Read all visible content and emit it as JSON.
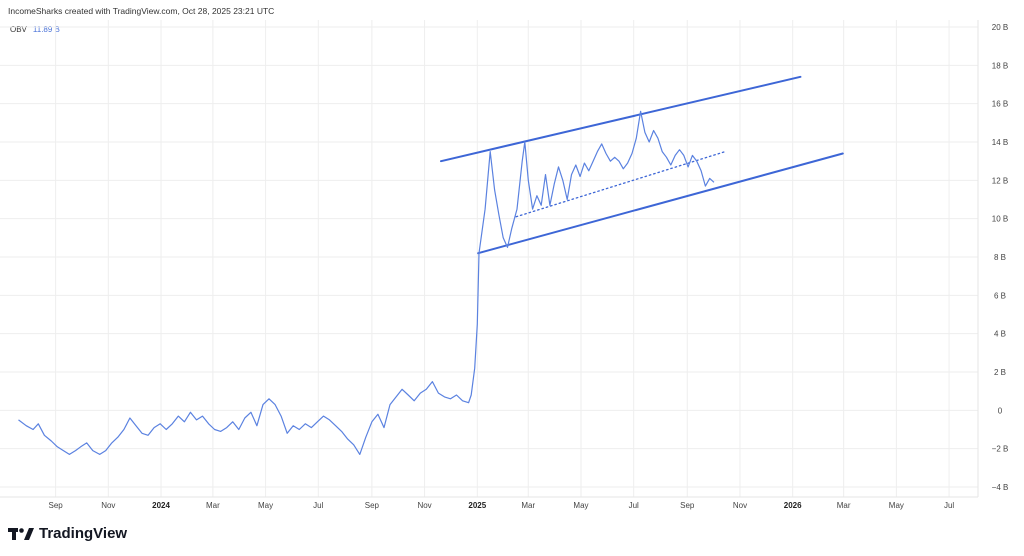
{
  "header": {
    "caption": "IncomeSharks created with TradingView.com, Oct 28, 2025 23:21 UTC"
  },
  "legend": {
    "indicator": "OBV",
    "value": "11.89 B"
  },
  "brand": {
    "name": "TradingView",
    "logo_icon": "tradingview-logo-icon"
  },
  "colors": {
    "series": "#5b82e0",
    "trendline": "#3d66d6",
    "grid": "#eeeeee",
    "axis_text": "#444444"
  },
  "chart_data": {
    "type": "line",
    "title": "",
    "xlabel": "",
    "ylabel": "",
    "ylim": [
      -4,
      20
    ],
    "x_range": [
      "2023-07-16",
      "2026-07-31"
    ],
    "y_ticks": [
      {
        "value": 20,
        "label": "20 B"
      },
      {
        "value": 18,
        "label": "18 B"
      },
      {
        "value": 16,
        "label": "16 B"
      },
      {
        "value": 14,
        "label": "14 B"
      },
      {
        "value": 12,
        "label": "12 B"
      },
      {
        "value": 10,
        "label": "10 B"
      },
      {
        "value": 8,
        "label": "8 B"
      },
      {
        "value": 6,
        "label": "6 B"
      },
      {
        "value": 4,
        "label": "4 B"
      },
      {
        "value": 2,
        "label": "2 B"
      },
      {
        "value": 0,
        "label": "0"
      },
      {
        "value": -2,
        "label": "−2 B"
      },
      {
        "value": -4,
        "label": "−4 B"
      }
    ],
    "x_ticks": [
      {
        "date": "2023-09-01",
        "label": "Sep",
        "bold": false
      },
      {
        "date": "2023-11-01",
        "label": "Nov",
        "bold": false
      },
      {
        "date": "2024-01-01",
        "label": "2024",
        "bold": true
      },
      {
        "date": "2024-03-01",
        "label": "Mar",
        "bold": false
      },
      {
        "date": "2024-05-01",
        "label": "May",
        "bold": false
      },
      {
        "date": "2024-07-01",
        "label": "Jul",
        "bold": false
      },
      {
        "date": "2024-09-01",
        "label": "Sep",
        "bold": false
      },
      {
        "date": "2024-11-01",
        "label": "Nov",
        "bold": false
      },
      {
        "date": "2025-01-01",
        "label": "2025",
        "bold": true
      },
      {
        "date": "2025-03-01",
        "label": "Mar",
        "bold": false
      },
      {
        "date": "2025-05-01",
        "label": "May",
        "bold": false
      },
      {
        "date": "2025-07-01",
        "label": "Jul",
        "bold": false
      },
      {
        "date": "2025-09-01",
        "label": "Sep",
        "bold": false
      },
      {
        "date": "2025-11-01",
        "label": "Nov",
        "bold": false
      },
      {
        "date": "2026-01-01",
        "label": "2026",
        "bold": true
      },
      {
        "date": "2026-03-01",
        "label": "Mar",
        "bold": false
      },
      {
        "date": "2026-05-01",
        "label": "May",
        "bold": false
      },
      {
        "date": "2026-07-01",
        "label": "Jul",
        "bold": false
      }
    ],
    "grid": true,
    "series": [
      {
        "points": [
          [
            "2023-07-20",
            -0.5
          ],
          [
            "2023-07-29",
            -0.8
          ],
          [
            "2023-08-06",
            -1.0
          ],
          [
            "2023-08-12",
            -0.7
          ],
          [
            "2023-08-19",
            -1.3
          ],
          [
            "2023-08-27",
            -1.6
          ],
          [
            "2023-09-03",
            -1.9
          ],
          [
            "2023-09-10",
            -2.1
          ],
          [
            "2023-09-17",
            -2.3
          ],
          [
            "2023-09-24",
            -2.1
          ],
          [
            "2023-09-30",
            -1.9
          ],
          [
            "2023-10-07",
            -1.7
          ],
          [
            "2023-10-14",
            -2.1
          ],
          [
            "2023-10-22",
            -2.3
          ],
          [
            "2023-10-29",
            -2.1
          ],
          [
            "2023-11-05",
            -1.7
          ],
          [
            "2023-11-12",
            -1.4
          ],
          [
            "2023-11-19",
            -1.0
          ],
          [
            "2023-11-26",
            -0.4
          ],
          [
            "2023-12-03",
            -0.8
          ],
          [
            "2023-12-10",
            -1.2
          ],
          [
            "2023-12-17",
            -1.3
          ],
          [
            "2023-12-24",
            -0.9
          ],
          [
            "2023-12-31",
            -0.7
          ],
          [
            "2024-01-07",
            -1.0
          ],
          [
            "2024-01-14",
            -0.7
          ],
          [
            "2024-01-21",
            -0.3
          ],
          [
            "2024-01-28",
            -0.6
          ],
          [
            "2024-02-04",
            -0.1
          ],
          [
            "2024-02-11",
            -0.5
          ],
          [
            "2024-02-18",
            -0.3
          ],
          [
            "2024-02-25",
            -0.7
          ],
          [
            "2024-03-03",
            -1.0
          ],
          [
            "2024-03-10",
            -1.1
          ],
          [
            "2024-03-17",
            -0.9
          ],
          [
            "2024-03-24",
            -0.6
          ],
          [
            "2024-03-31",
            -1.0
          ],
          [
            "2024-04-07",
            -0.4
          ],
          [
            "2024-04-14",
            -0.1
          ],
          [
            "2024-04-21",
            -0.8
          ],
          [
            "2024-04-28",
            0.3
          ],
          [
            "2024-05-05",
            0.6
          ],
          [
            "2024-05-12",
            0.3
          ],
          [
            "2024-05-19",
            -0.3
          ],
          [
            "2024-05-26",
            -1.2
          ],
          [
            "2024-06-02",
            -0.8
          ],
          [
            "2024-06-09",
            -1.0
          ],
          [
            "2024-06-16",
            -0.7
          ],
          [
            "2024-06-23",
            -0.9
          ],
          [
            "2024-06-30",
            -0.6
          ],
          [
            "2024-07-07",
            -0.3
          ],
          [
            "2024-07-14",
            -0.5
          ],
          [
            "2024-07-21",
            -0.8
          ],
          [
            "2024-07-28",
            -1.1
          ],
          [
            "2024-08-04",
            -1.5
          ],
          [
            "2024-08-11",
            -1.8
          ],
          [
            "2024-08-18",
            -2.3
          ],
          [
            "2024-08-25",
            -1.4
          ],
          [
            "2024-09-01",
            -0.6
          ],
          [
            "2024-09-08",
            -0.2
          ],
          [
            "2024-09-15",
            -0.9
          ],
          [
            "2024-09-22",
            0.3
          ],
          [
            "2024-09-29",
            0.7
          ],
          [
            "2024-10-06",
            1.1
          ],
          [
            "2024-10-13",
            0.8
          ],
          [
            "2024-10-20",
            0.5
          ],
          [
            "2024-10-27",
            0.9
          ],
          [
            "2024-11-03",
            1.1
          ],
          [
            "2024-11-10",
            1.5
          ],
          [
            "2024-11-17",
            0.9
          ],
          [
            "2024-11-24",
            0.7
          ],
          [
            "2024-12-01",
            0.6
          ],
          [
            "2024-12-08",
            0.8
          ],
          [
            "2024-12-15",
            0.5
          ],
          [
            "2024-12-22",
            0.4
          ],
          [
            "2024-12-25",
            0.8
          ],
          [
            "2024-12-29",
            2.2
          ],
          [
            "2025-01-01",
            4.5
          ],
          [
            "2025-01-03",
            8.2
          ],
          [
            "2025-01-10",
            10.5
          ],
          [
            "2025-01-16",
            13.5
          ],
          [
            "2025-01-21",
            11.5
          ],
          [
            "2025-01-26",
            10.2
          ],
          [
            "2025-01-31",
            9.0
          ],
          [
            "2025-02-05",
            8.5
          ],
          [
            "2025-02-10",
            9.5
          ],
          [
            "2025-02-16",
            10.5
          ],
          [
            "2025-02-22",
            13.0
          ],
          [
            "2025-02-25",
            14.0
          ],
          [
            "2025-03-01",
            12.0
          ],
          [
            "2025-03-06",
            10.5
          ],
          [
            "2025-03-11",
            11.2
          ],
          [
            "2025-03-16",
            10.7
          ],
          [
            "2025-03-21",
            12.3
          ],
          [
            "2025-03-26",
            10.7
          ],
          [
            "2025-03-31",
            11.8
          ],
          [
            "2025-04-05",
            12.7
          ],
          [
            "2025-04-10",
            12.0
          ],
          [
            "2025-04-15",
            11.0
          ],
          [
            "2025-04-20",
            12.3
          ],
          [
            "2025-04-25",
            12.8
          ],
          [
            "2025-04-30",
            12.2
          ],
          [
            "2025-05-05",
            12.9
          ],
          [
            "2025-05-10",
            12.5
          ],
          [
            "2025-05-15",
            13.0
          ],
          [
            "2025-05-20",
            13.5
          ],
          [
            "2025-05-25",
            13.9
          ],
          [
            "2025-05-30",
            13.4
          ],
          [
            "2025-06-04",
            13.0
          ],
          [
            "2025-06-09",
            13.2
          ],
          [
            "2025-06-14",
            13.0
          ],
          [
            "2025-06-19",
            12.6
          ],
          [
            "2025-06-24",
            12.9
          ],
          [
            "2025-06-29",
            13.4
          ],
          [
            "2025-07-04",
            14.2
          ],
          [
            "2025-07-09",
            15.6
          ],
          [
            "2025-07-14",
            14.5
          ],
          [
            "2025-07-19",
            14.0
          ],
          [
            "2025-07-24",
            14.6
          ],
          [
            "2025-07-29",
            14.2
          ],
          [
            "2025-08-03",
            13.5
          ],
          [
            "2025-08-08",
            13.2
          ],
          [
            "2025-08-13",
            12.8
          ],
          [
            "2025-08-18",
            13.3
          ],
          [
            "2025-08-23",
            13.6
          ],
          [
            "2025-08-28",
            13.3
          ],
          [
            "2025-09-02",
            12.7
          ],
          [
            "2025-09-07",
            13.3
          ],
          [
            "2025-09-12",
            13.0
          ],
          [
            "2025-09-17",
            12.5
          ],
          [
            "2025-09-22",
            11.7
          ],
          [
            "2025-09-27",
            12.1
          ],
          [
            "2025-10-02",
            11.9
          ]
        ]
      }
    ],
    "trendlines": [
      {
        "style": "solid",
        "from": [
          "2024-11-20",
          13.0
        ],
        "to": [
          "2026-01-10",
          17.4
        ]
      },
      {
        "style": "solid",
        "from": [
          "2025-01-02",
          8.2
        ],
        "to": [
          "2026-02-28",
          13.4
        ]
      },
      {
        "style": "dotted",
        "from": [
          "2025-02-15",
          10.1
        ],
        "to": [
          "2025-10-15",
          13.5
        ]
      }
    ]
  }
}
